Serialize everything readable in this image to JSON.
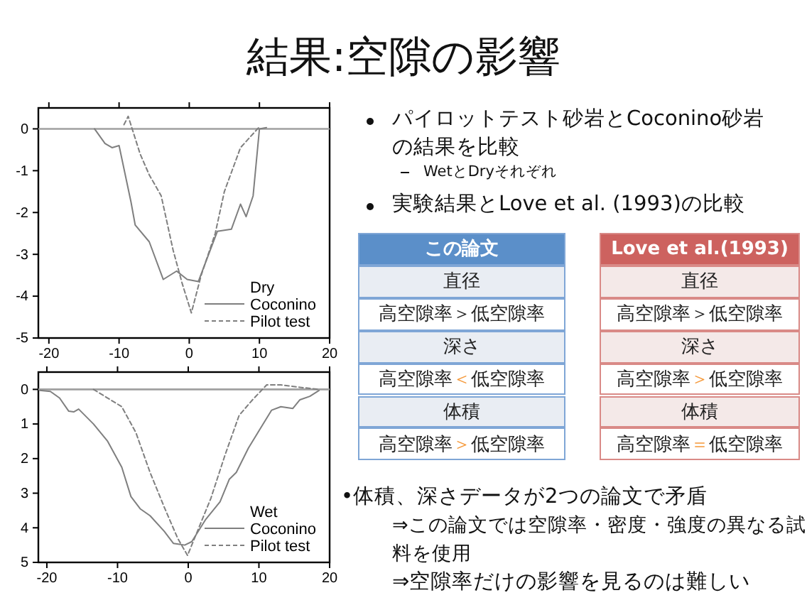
{
  "chart_data": [
    {
      "type": "other",
      "title": "結果:空隙の影響",
      "annotations": [
        "パイロットテスト砂岩とCoconino砂岩の結果を比較",
        "WetとDryそれぞれ",
        "実験結果とLove et al. (1993)の比較",
        "この論文",
        "直径",
        "高空隙率＞低空隙率",
        "深さ",
        "高空隙率＜低空隙率",
        "体積",
        "高空隙率＞低空隙率",
        "Love et al.(1993)",
        "直径",
        "高空隙率＞低空隙率",
        "深さ",
        "高空隙率＞低空隙率",
        "体積",
        "高空隙率＝低空隙率",
        "•体積、深さデータが2つの論文で矛盾",
        "⇒この論文では空隙率・密度・強度の異なる試料を使用",
        "⇒空隙率だけの影響を見るのは難しい"
      ]
    },
    {
      "type": "line",
      "legend_title": "Dry",
      "legend": "bottom right",
      "xlim": [
        -21.5,
        20
      ],
      "ylim": [
        -5,
        0.5
      ],
      "xticks": [
        -20,
        -10,
        0,
        10,
        20
      ],
      "yticks": [
        -5,
        -4,
        -3,
        -2,
        -1,
        0
      ],
      "ref_lines": [
        {
          "axis": "y",
          "value": 0,
          "color": "#a0a0a0"
        }
      ],
      "series": [
        {
          "name": "Coconino",
          "color": "#7f7f7f",
          "line_style": "solid",
          "x": [
            -13.5,
            -12,
            -11,
            -10,
            -8.3,
            -7.7,
            -5.7,
            -3.7,
            -1.8,
            -0.3,
            1.3,
            4,
            6,
            7.3,
            8.1,
            9.1,
            10,
            11
          ],
          "values": [
            0,
            -0.35,
            -0.45,
            -0.4,
            -1.75,
            -2.3,
            -2.7,
            -3.6,
            -3.4,
            -3.6,
            -3.65,
            -2.45,
            -2.4,
            -1.8,
            -2.1,
            -1.6,
            0,
            0.03
          ]
        },
        {
          "name": "Pilot test",
          "color": "#7f7f7f",
          "line_style": "dashed",
          "x": [
            -9.3,
            -8.7,
            -7,
            -5.7,
            -4,
            -2.3,
            -1,
            0.3,
            1.7,
            3.7,
            5,
            7.3,
            10
          ],
          "values": [
            0.1,
            0.3,
            -0.6,
            -1.1,
            -1.6,
            -2.9,
            -3.7,
            -4.4,
            -3.5,
            -2.5,
            -1.5,
            -0.45,
            0.05
          ]
        }
      ]
    },
    {
      "type": "line",
      "legend_title": "Wet",
      "legend": "bottom right",
      "xlim": [
        -21.2,
        20
      ],
      "ylim": [
        5,
        -0.5
      ],
      "xticks": [
        -20,
        -10,
        0,
        10,
        20
      ],
      "yticks": [
        0,
        1,
        2,
        3,
        4,
        5
      ],
      "ref_lines": [
        {
          "axis": "y",
          "value": 0,
          "color": "#a0a0a0"
        }
      ],
      "series": [
        {
          "name": "Coconino",
          "color": "#7f7f7f",
          "line_style": "solid",
          "x": [
            -21,
            -19.5,
            -18.2,
            -16.9,
            -16.2,
            -15.5,
            -13.4,
            -11.4,
            -9.4,
            -8.1,
            -6.8,
            -5.4,
            -3.4,
            -2.1,
            -0.5,
            0.5,
            2.5,
            4.5,
            5.8,
            6.8,
            8.5,
            10,
            11.8,
            13.1,
            14.8,
            15.8,
            17.2,
            18.5
          ],
          "values": [
            0.03,
            0.06,
            0.25,
            0.63,
            0.65,
            0.57,
            1,
            1.5,
            2.25,
            3.1,
            3.45,
            3.65,
            4.1,
            4.45,
            4.5,
            4.4,
            3.75,
            3.25,
            2.6,
            2.4,
            1.7,
            1.2,
            0.6,
            0.5,
            0.55,
            0.3,
            0.2,
            0.03
          ]
        },
        {
          "name": "Pilot test",
          "color": "#7f7f7f",
          "line_style": "dashed",
          "x": [
            -13.4,
            -11.4,
            -9.4,
            -7.4,
            -5.4,
            -3.4,
            -1.5,
            -0.1,
            1.2,
            3.2,
            5.2,
            7.2,
            9.1,
            11.1,
            13.1,
            15.8,
            18.5
          ],
          "values": [
            0,
            0.25,
            0.5,
            1.25,
            2.4,
            3.4,
            4.3,
            4.8,
            4.15,
            3.15,
            1.9,
            0.75,
            0.3,
            -0.13,
            -0.13,
            -0.06,
            0
          ]
        }
      ]
    }
  ]
}
